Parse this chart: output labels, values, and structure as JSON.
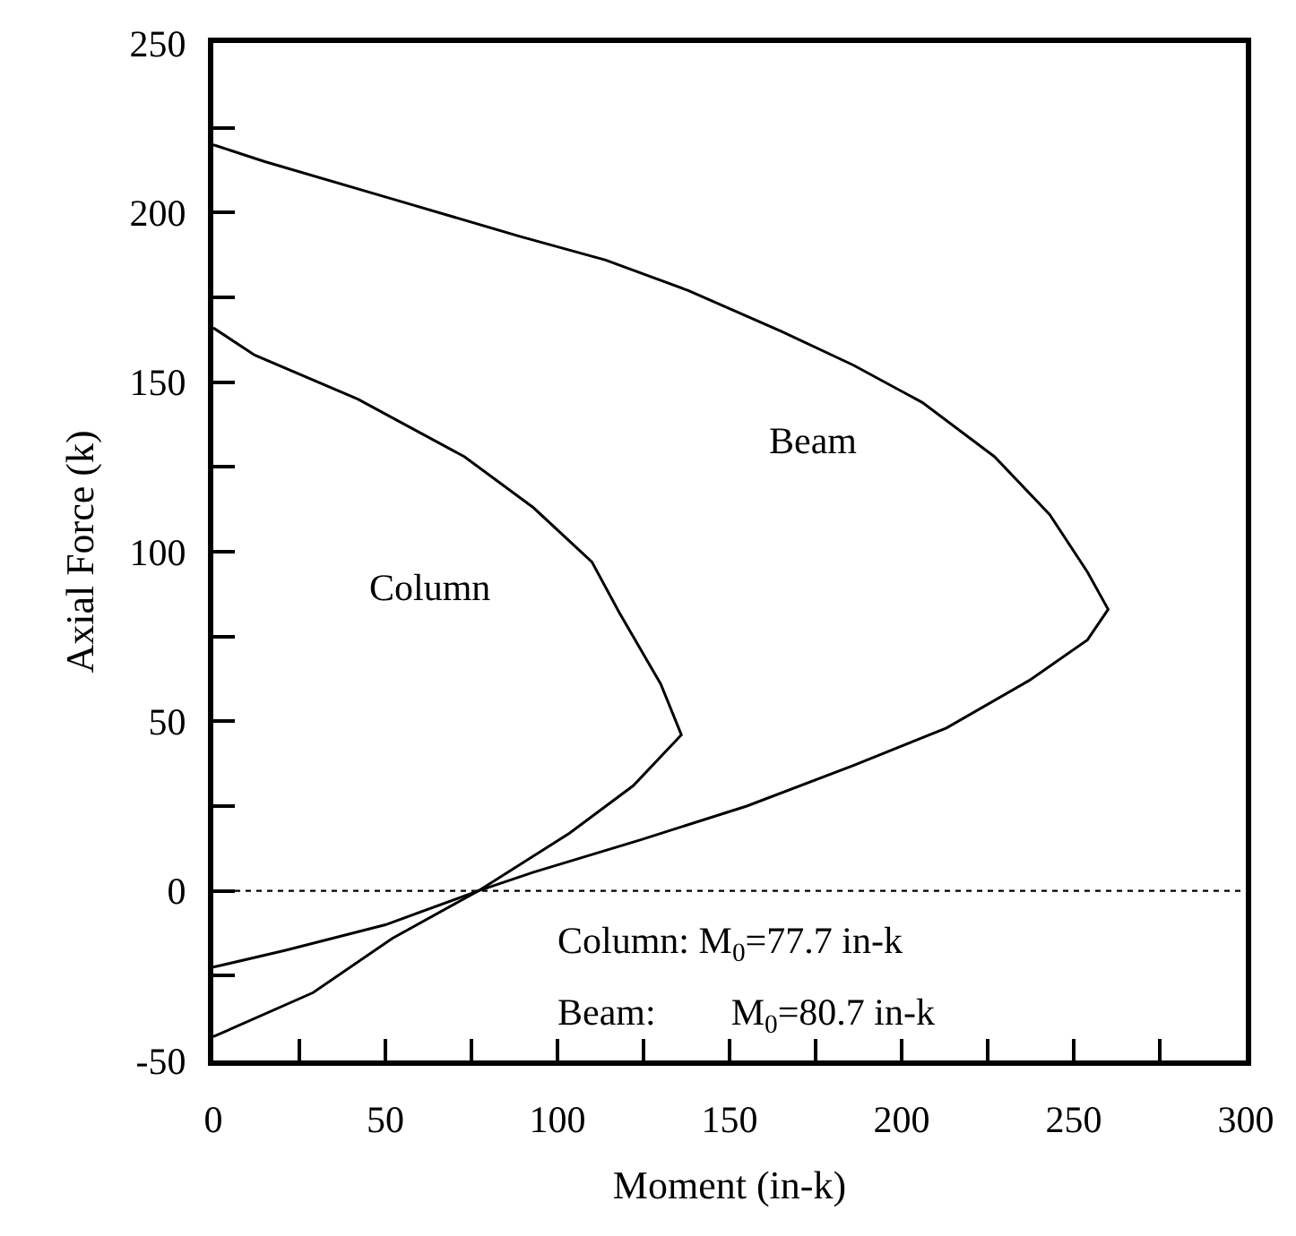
{
  "chart_data": {
    "type": "line",
    "xlabel": "Moment (in-k)",
    "ylabel": "Axial Force (k)",
    "xlim": [
      0,
      300
    ],
    "ylim": [
      -50,
      250
    ],
    "xticks": [
      0,
      {
        "value": 25,
        "label": null
      },
      50,
      {
        "value": 75,
        "label": null
      },
      100,
      {
        "value": 125,
        "label": null
      },
      150,
      {
        "value": 175,
        "label": null
      },
      200,
      {
        "value": 225,
        "label": null
      },
      250,
      {
        "value": 275,
        "label": null
      },
      300
    ],
    "yticks": [
      -50,
      {
        "value": -25,
        "label": null
      },
      0,
      {
        "value": 25,
        "label": null
      },
      50,
      {
        "value": 75,
        "label": null
      },
      100,
      {
        "value": 125,
        "label": null
      },
      150,
      {
        "value": 175,
        "label": null
      },
      200,
      {
        "value": 225,
        "label": null
      },
      250
    ],
    "marker": "none",
    "line_style": "solid",
    "series": [
      {
        "color": "#000000",
        "x": [
          0,
          1.5,
          15,
          52,
          89,
          114,
          138,
          165,
          186,
          206,
          227,
          243,
          254,
          260,
          254,
          237,
          213,
          186,
          155,
          124,
          93,
          77,
          50,
          21,
          0
        ],
        "values": [
          220,
          219.5,
          215,
          204,
          193,
          186,
          177,
          165,
          155,
          144,
          128,
          111,
          94,
          83,
          74,
          62,
          48,
          37,
          25,
          15,
          5.5,
          0,
          -10,
          -17.5,
          -22.5
        ]
      },
      {
        "color": "#000000",
        "x": [
          0,
          12,
          42,
          73,
          93,
          110,
          118,
          130,
          136,
          122,
          103.5,
          77,
          52,
          29,
          0
        ],
        "values": [
          166,
          158,
          145,
          128,
          113,
          97,
          82,
          61,
          46,
          31,
          17,
          0,
          -14,
          -30,
          -43
        ]
      }
    ],
    "ref_lines": [
      {
        "axis": "y",
        "value": 0,
        "color": "#000000",
        "line_style": "dotted"
      }
    ],
    "annotations": [
      "Beam",
      "Column",
      "Column: M$_{0}$=77.7 in-k",
      "Beam:    M$_{0}$=80.7 in-k"
    ]
  }
}
